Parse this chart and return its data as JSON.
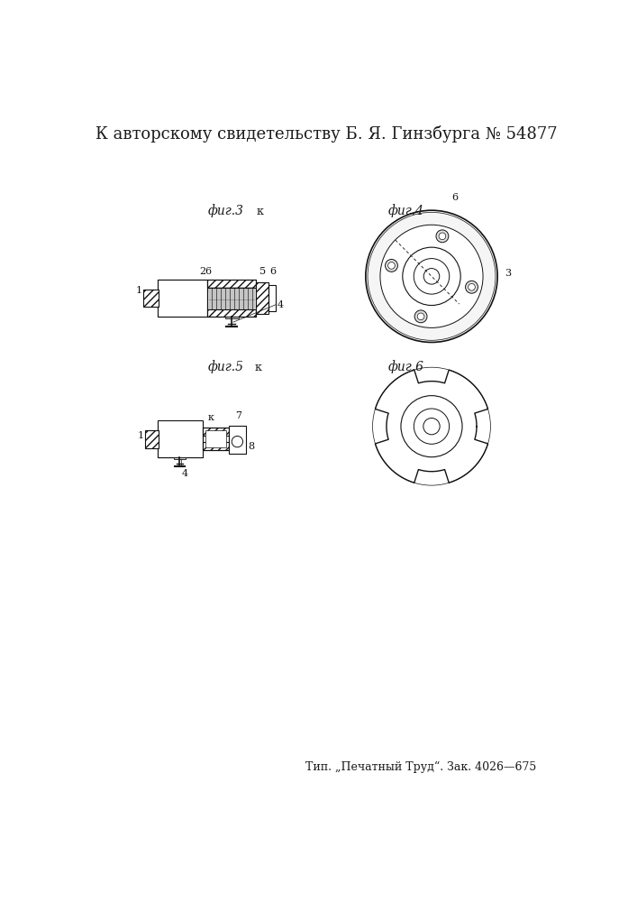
{
  "title_text": "К авторскому свидетельству Б. Я. Гинзбурга № 54877",
  "footer_text": "Тип. „Печатный Труд“. Зак. 4026—675",
  "bg_color": "#ffffff",
  "line_color": "#1a1a1a",
  "title_fontsize": 13,
  "footer_fontsize": 9,
  "fig3_label": "фиг.3",
  "fig4_label": "фиг.4",
  "fig5_label": "фиг.5",
  "fig6_label": "фиг.6"
}
